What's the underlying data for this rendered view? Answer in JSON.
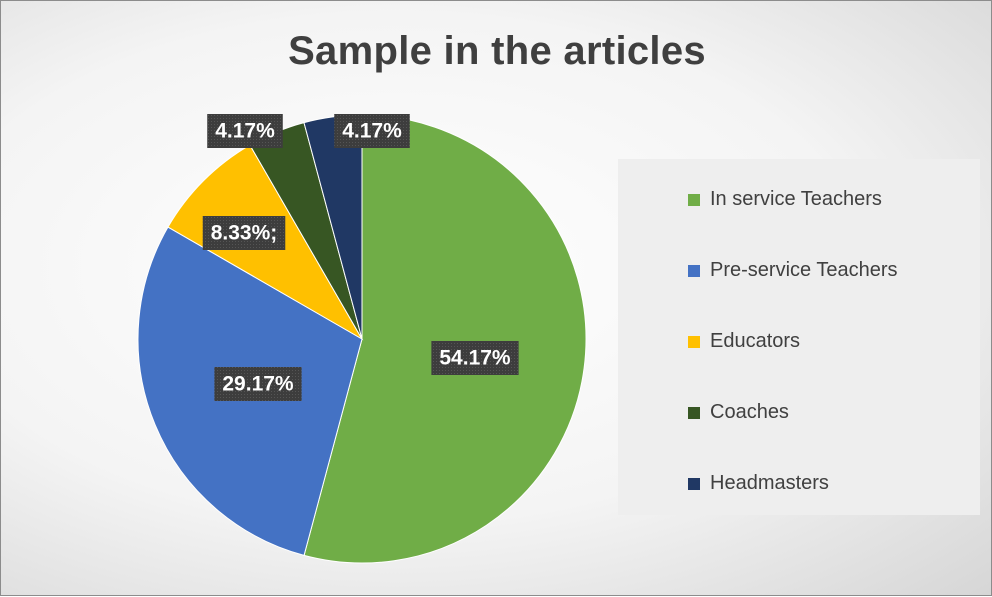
{
  "chart_data": {
    "type": "pie",
    "title": "Sample in the articles",
    "slices": [
      {
        "name": "In service Teachers",
        "value": 54.17,
        "label": "54.17%",
        "color": "#70ad47"
      },
      {
        "name": "Pre-service Teachers",
        "value": 29.17,
        "label": "29.17%",
        "color": "#4472c4"
      },
      {
        "name": "Educators",
        "value": 8.33,
        "label": "8.33%;",
        "color": "#ffc000"
      },
      {
        "name": "Coaches",
        "value": 4.17,
        "label": "4.17%",
        "color": "#375623"
      },
      {
        "name": "Headmasters",
        "value": 4.17,
        "label": "4.17%",
        "color": "#203864"
      }
    ],
    "legend": {
      "position": "right"
    },
    "data_label_style": {
      "background": "#404040",
      "text_color": "#ffffff"
    }
  }
}
